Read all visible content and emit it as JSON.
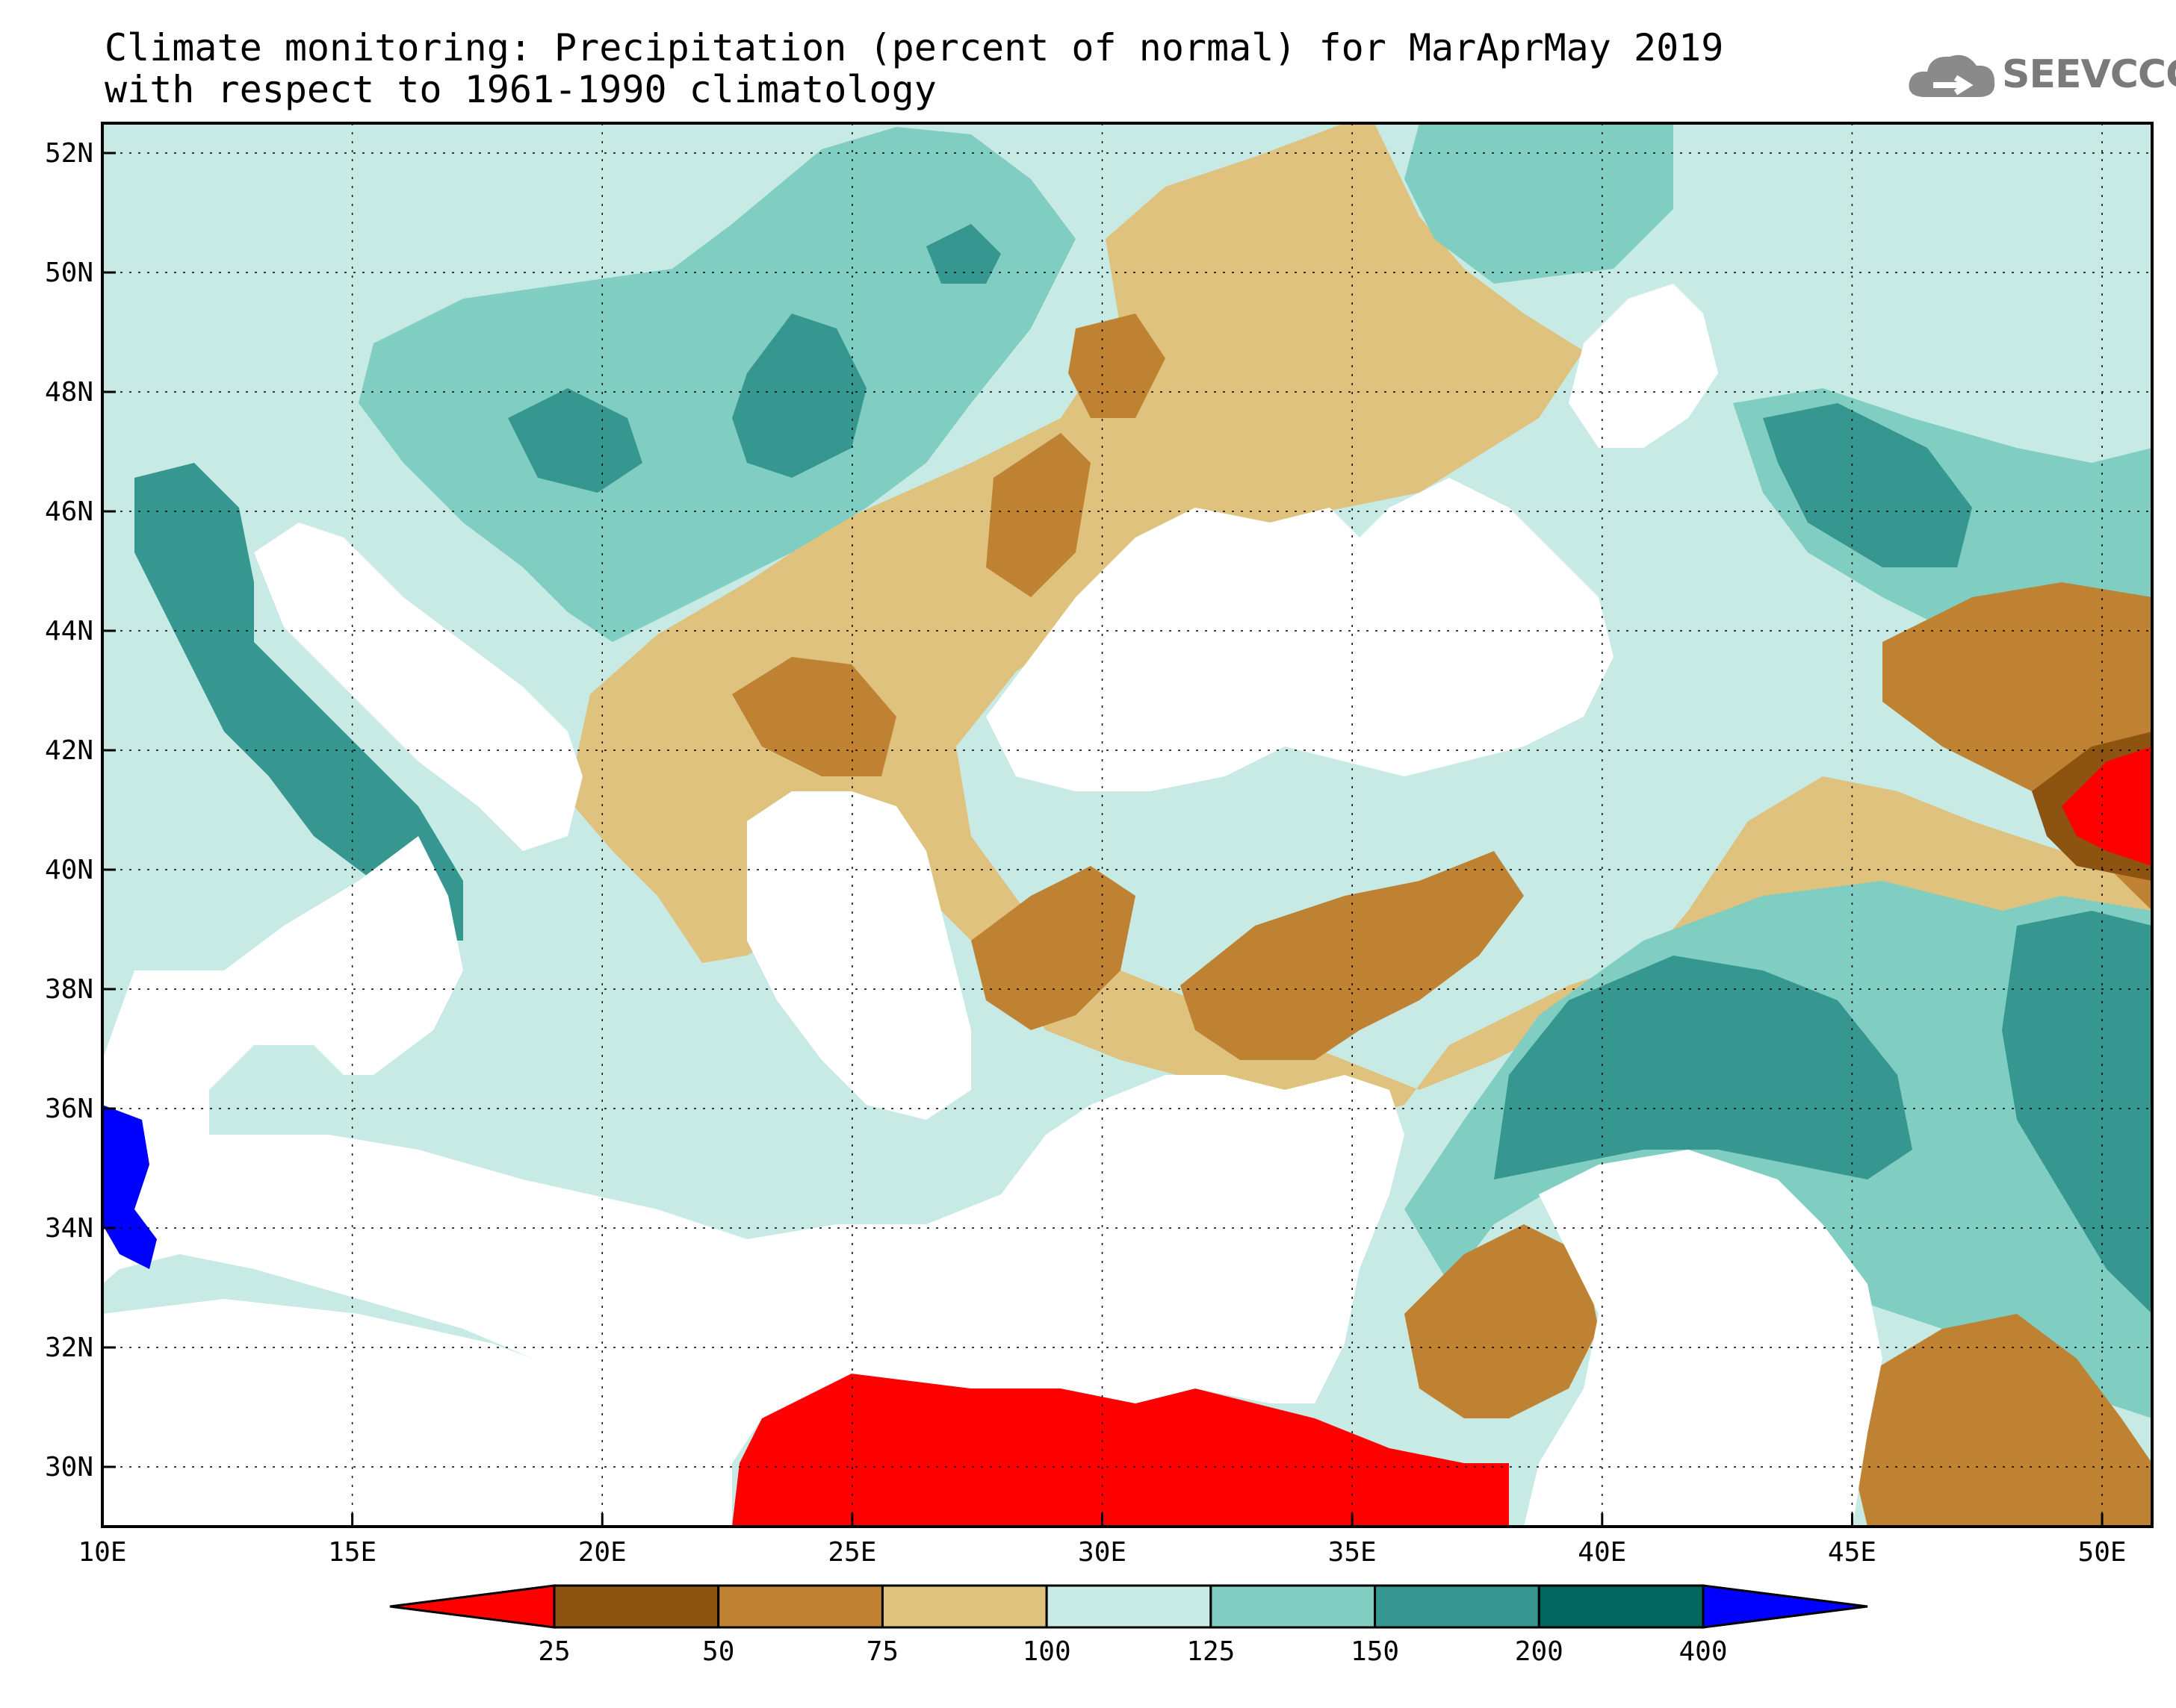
{
  "title": {
    "line1": "Climate monitoring: Precipitation (percent of normal) for MarAprMay 2019",
    "line2": "with respect to 1961-1990 climatology"
  },
  "logo": {
    "text": "SEEVCCC",
    "icon": "cloud-icon"
  },
  "map": {
    "projection": "lat-lon",
    "lon_range": [
      10,
      51
    ],
    "lat_range": [
      29,
      52.5
    ],
    "lon_ticks": [
      "10E",
      "15E",
      "20E",
      "25E",
      "30E",
      "35E",
      "40E",
      "45E",
      "50E"
    ],
    "lat_ticks": [
      "52N",
      "50N",
      "48N",
      "46N",
      "44N",
      "42N",
      "40N",
      "38N",
      "36N",
      "34N",
      "32N",
      "30N"
    ],
    "grid": "dotted"
  },
  "legend": {
    "labels": [
      "25",
      "50",
      "75",
      "100",
      "125",
      "150",
      "200",
      "400"
    ],
    "colors": [
      "#ff0000",
      "#8c5410",
      "#bf8232",
      "#dfc27d",
      "#c7eae5",
      "#80cdc1",
      "#35978f",
      "#01665e",
      "#0000ff"
    ]
  }
}
